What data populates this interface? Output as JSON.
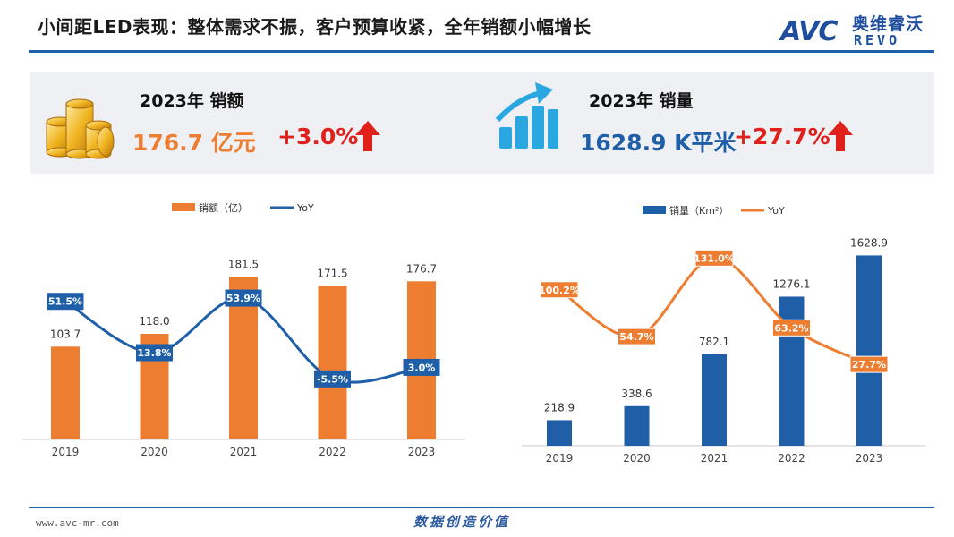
{
  "header": {
    "title": "小间距LED表现：整体需求不振，客户预算收紧，全年销额小幅增长",
    "logo_text": "AVC",
    "logo_cn": "奥维睿沃",
    "logo_en": "REVO"
  },
  "kpis": [
    {
      "label": "2023年 销额",
      "value": "176.7 亿元",
      "change": "+3.0%",
      "icon": "gold-coins-icon",
      "value_color": "#ed7d31"
    },
    {
      "label": "2023年 销量",
      "value": "1628.9 K平米",
      "change": "+27.7%",
      "icon": "rising-bars-icon",
      "value_color": "#1f5fa8"
    }
  ],
  "colors": {
    "orange": "#ed7d31",
    "blue": "#1f5fa8",
    "red": "#e0201b",
    "rule": "#1f5fa8"
  },
  "footer": {
    "url": "www.avc-mr.com",
    "slogan": "数据创造价值"
  },
  "chart_data": [
    {
      "type": "bar",
      "categories": [
        "2019",
        "2020",
        "2021",
        "2022",
        "2023"
      ],
      "series": [
        {
          "name": "销额（亿）",
          "kind": "bar",
          "values": [
            103.7,
            118.0,
            181.5,
            171.5,
            176.7
          ],
          "labels": [
            "103.7",
            "118.0",
            "181.5",
            "171.5",
            "176.7"
          ],
          "color": "#ed7d31"
        },
        {
          "name": "YoY",
          "kind": "line",
          "values": [
            51.5,
            13.8,
            53.9,
            -5.5,
            3.0
          ],
          "labels": [
            "51.5%",
            "13.8%",
            "53.9%",
            "-5.5%",
            "3.0%"
          ],
          "color": "#1f5fa8"
        }
      ],
      "legend": "top",
      "grid": false
    },
    {
      "type": "bar",
      "categories": [
        "2019",
        "2020",
        "2021",
        "2022",
        "2023"
      ],
      "series": [
        {
          "name": "销量（Km²）",
          "kind": "bar",
          "values": [
            218.9,
            338.6,
            782.1,
            1276.1,
            1628.9
          ],
          "labels": [
            "218.9",
            "338.6",
            "782.1",
            "1276.1",
            "1628.9"
          ],
          "color": "#1f5fa8"
        },
        {
          "name": "YoY",
          "kind": "line",
          "values": [
            100.2,
            54.7,
            131.0,
            63.2,
            27.7
          ],
          "labels": [
            "100.2%",
            "54.7%",
            "131.0%",
            "63.2%",
            "27.7%"
          ],
          "color": "#ed7d31"
        }
      ],
      "legend": "top",
      "grid": false
    }
  ]
}
